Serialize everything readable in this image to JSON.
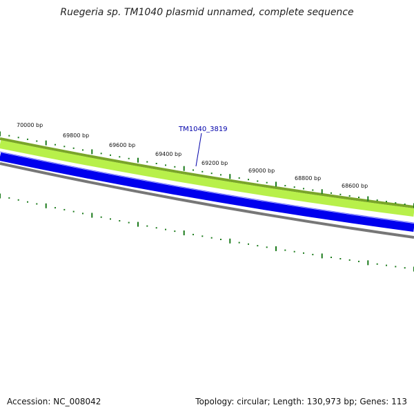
{
  "title": "Ruegeria sp. TM1040 plasmid unnamed, complete sequence",
  "accession": "Accession: NC_008042",
  "summary": "Topology: circular; Length: 130,973 bp; Genes: 113",
  "gene": {
    "label": "TM1040_3819"
  },
  "bp_labels": [
    "70000 bp",
    "69800 bp",
    "69600 bp",
    "69400 bp",
    "69200 bp",
    "69000 bp",
    "68800 bp",
    "68600 bp"
  ],
  "colors": {
    "outer_band_edge": "#7aa52a",
    "outer_band_fill": "#b8f04a",
    "gene_band": "#0000ee",
    "inner_band": "#777777",
    "ticks": "#1a7a1a",
    "gene_label": "#0000aa"
  }
}
